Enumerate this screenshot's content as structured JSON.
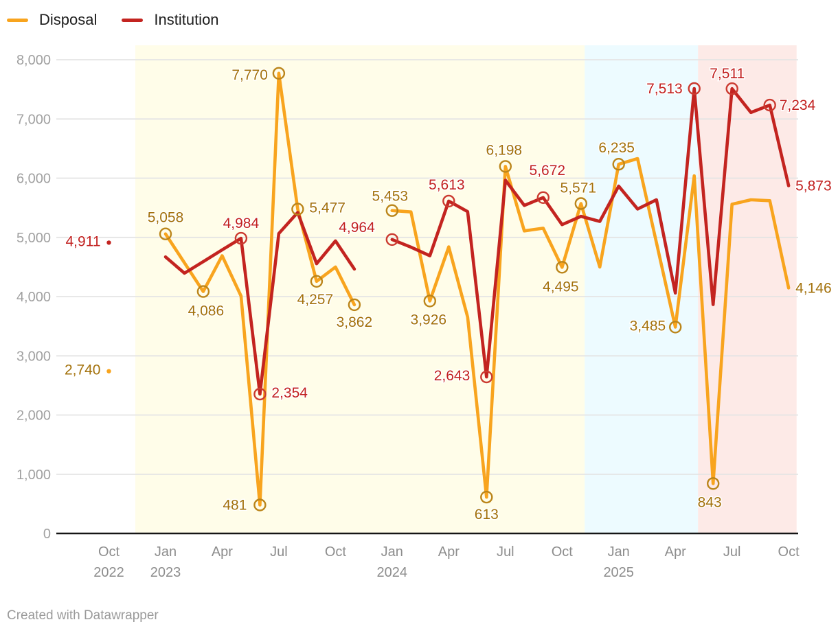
{
  "footer": "Created with Datawrapper",
  "legend": {
    "items": [
      {
        "label": "Disposal",
        "color": "#f8a41e"
      },
      {
        "label": "Institution",
        "color": "#c32420"
      }
    ]
  },
  "chart_data": {
    "type": "line",
    "title": "",
    "x_unit": "months since Oct 2022",
    "grid": true,
    "y_axis": {
      "range": [
        0,
        8250
      ],
      "ticks": [
        {
          "v": 0,
          "label": "0"
        },
        {
          "v": 1000,
          "label": "1,000"
        },
        {
          "v": 2000,
          "label": "2,000"
        },
        {
          "v": 3000,
          "label": "3,000"
        },
        {
          "v": 4000,
          "label": "4,000"
        },
        {
          "v": 5000,
          "label": "5,000"
        },
        {
          "v": 6000,
          "label": "6,000"
        },
        {
          "v": 7000,
          "label": "7,000"
        },
        {
          "v": 8000,
          "label": "8,000"
        }
      ]
    },
    "x_axis": {
      "ticks": [
        {
          "t": 0,
          "line1": "Oct",
          "line2": "2022"
        },
        {
          "t": 3,
          "line1": "Jan",
          "line2": "2023"
        },
        {
          "t": 6,
          "line1": "Apr"
        },
        {
          "t": 9,
          "line1": "Jul"
        },
        {
          "t": 12,
          "line1": "Oct"
        },
        {
          "t": 15,
          "line1": "Jan",
          "line2": "2024"
        },
        {
          "t": 18,
          "line1": "Apr"
        },
        {
          "t": 21,
          "line1": "Jul"
        },
        {
          "t": 24,
          "line1": "Oct"
        },
        {
          "t": 27,
          "line1": "Jan",
          "line2": "2025"
        },
        {
          "t": 30,
          "line1": "Apr"
        },
        {
          "t": 33,
          "line1": "Jul"
        },
        {
          "t": 36,
          "line1": "Oct"
        }
      ]
    },
    "bands": [
      {
        "name": "band-yellow",
        "color": "#fffde9",
        "from_t": 1.4,
        "to_t": 25.2
      },
      {
        "name": "band-blue",
        "color": "#edfbff",
        "from_t": 25.2,
        "to_t": 31.2
      },
      {
        "name": "band-pink",
        "color": "#fdeae7",
        "from_t": 31.2,
        "to_t": 36.42
      }
    ],
    "series": [
      {
        "name": "Disposal",
        "color": "#f8a41e",
        "label_color": "#a3710b",
        "marker_color": "#bb851a",
        "segments": [
          [
            {
              "t": 0,
              "v": 2740,
              "dot": true,
              "label": "2,740",
              "anchor": "end",
              "dx": -12,
              "dy": -2
            }
          ],
          [
            {
              "t": 3,
              "v": 5058,
              "marker": true,
              "label": "5,058",
              "anchor": "middle",
              "dx": 0,
              "dy": -24
            },
            {
              "t": 4,
              "v": 4570
            },
            {
              "t": 5,
              "v": 4086,
              "marker": true,
              "label": "4,086",
              "anchor": "middle",
              "dx": 4,
              "dy": 28
            },
            {
              "t": 6,
              "v": 4690
            },
            {
              "t": 7,
              "v": 4010
            },
            {
              "t": 8,
              "v": 481,
              "marker": true,
              "label": "481",
              "anchor": "end",
              "dx": -19,
              "dy": 0
            },
            {
              "t": 9,
              "v": 7770,
              "marker": true,
              "label": "7,770",
              "anchor": "end",
              "dx": -16,
              "dy": 2
            },
            {
              "t": 10,
              "v": 5477,
              "marker": true,
              "label": "5,477",
              "anchor": "start",
              "dx": 17,
              "dy": -2
            },
            {
              "t": 11,
              "v": 4257,
              "marker": true,
              "label": "4,257",
              "anchor": "middle",
              "dx": -2,
              "dy": 26
            },
            {
              "t": 12,
              "v": 4500
            },
            {
              "t": 13,
              "v": 3862,
              "marker": true,
              "label": "3,862",
              "anchor": "middle",
              "dx": 0,
              "dy": 25
            }
          ],
          [
            {
              "t": 15,
              "v": 5453,
              "marker": true,
              "label": "5,453",
              "anchor": "middle",
              "dx": -3,
              "dy": -21
            },
            {
              "t": 16,
              "v": 5430
            },
            {
              "t": 17,
              "v": 3926,
              "marker": true,
              "label": "3,926",
              "anchor": "middle",
              "dx": -2,
              "dy": 27
            },
            {
              "t": 18,
              "v": 4840
            },
            {
              "t": 19,
              "v": 3655
            },
            {
              "t": 20,
              "v": 613,
              "marker": true,
              "label": "613",
              "anchor": "middle",
              "dx": 0,
              "dy": 25
            },
            {
              "t": 21,
              "v": 6198,
              "marker": true,
              "label": "6,198",
              "anchor": "middle",
              "dx": -2,
              "dy": -24
            },
            {
              "t": 22,
              "v": 5110
            },
            {
              "t": 23,
              "v": 5155
            },
            {
              "t": 24,
              "v": 4495,
              "marker": true,
              "label": "4,495",
              "anchor": "middle",
              "dx": -2,
              "dy": 28
            },
            {
              "t": 25,
              "v": 5571,
              "marker": true,
              "label": "5,571",
              "anchor": "middle",
              "dx": -4,
              "dy": -23
            },
            {
              "t": 26,
              "v": 4500
            },
            {
              "t": 27,
              "v": 6235,
              "marker": true,
              "label": "6,235",
              "anchor": "middle",
              "dx": -3,
              "dy": -24
            },
            {
              "t": 28,
              "v": 6330
            },
            {
              "t": 29,
              "v": 4910
            },
            {
              "t": 30,
              "v": 3485,
              "marker": true,
              "label": "3,485",
              "anchor": "end",
              "dx": -14,
              "dy": -2
            },
            {
              "t": 31,
              "v": 6040
            },
            {
              "t": 32,
              "v": 843,
              "marker": true,
              "label": "843",
              "anchor": "middle",
              "dx": -5,
              "dy": 27
            },
            {
              "t": 33,
              "v": 5560
            },
            {
              "t": 34,
              "v": 5635
            },
            {
              "t": 35,
              "v": 5620
            },
            {
              "t": 36,
              "v": 4146,
              "label": "4,146",
              "anchor": "start",
              "dx": 10,
              "dy": 0
            }
          ]
        ]
      },
      {
        "name": "Institution",
        "color": "#c32420",
        "label_color": "#c22120",
        "marker_color": "#cb3a30",
        "segments": [
          [
            {
              "t": 0,
              "v": 4911,
              "dot": true,
              "label": "4,911",
              "anchor": "end",
              "dx": -12,
              "dy": -2
            }
          ],
          [
            {
              "t": 3,
              "v": 4670
            },
            {
              "t": 4,
              "v": 4395
            },
            {
              "t": 5,
              "v": 4590
            },
            {
              "t": 6,
              "v": 4790
            },
            {
              "t": 7,
              "v": 4984,
              "marker": true,
              "label": "4,984",
              "anchor": "middle",
              "dx": 0,
              "dy": -22
            },
            {
              "t": 8,
              "v": 2354,
              "marker": true,
              "label": "2,354",
              "anchor": "start",
              "dx": 17,
              "dy": -2
            },
            {
              "t": 9,
              "v": 5065
            },
            {
              "t": 10,
              "v": 5420
            },
            {
              "t": 11,
              "v": 4555
            },
            {
              "t": 12,
              "v": 4940
            },
            {
              "t": 13,
              "v": 4465
            }
          ],
          [
            {
              "t": 15,
              "v": 4964,
              "marker": true,
              "label": "4,964",
              "anchor": "end",
              "dx": -25,
              "dy": -18
            },
            {
              "t": 16,
              "v": 4835
            },
            {
              "t": 17,
              "v": 4690
            },
            {
              "t": 18,
              "v": 5613,
              "marker": true,
              "label": "5,613",
              "anchor": "middle",
              "dx": -3,
              "dy": -24
            },
            {
              "t": 19,
              "v": 5435
            },
            {
              "t": 20,
              "v": 2643,
              "marker": true,
              "label": "2,643",
              "anchor": "end",
              "dx": -24,
              "dy": -2
            },
            {
              "t": 21,
              "v": 5965
            },
            {
              "t": 22,
              "v": 5540
            },
            {
              "t": 23,
              "v": 5672,
              "marker": true,
              "label": "5,672",
              "anchor": "middle",
              "dx": 6,
              "dy": -40
            },
            {
              "t": 24,
              "v": 5215
            },
            {
              "t": 25,
              "v": 5355
            },
            {
              "t": 26,
              "v": 5270
            },
            {
              "t": 27,
              "v": 5865
            },
            {
              "t": 28,
              "v": 5480
            },
            {
              "t": 29,
              "v": 5635
            },
            {
              "t": 30,
              "v": 4060
            },
            {
              "t": 31,
              "v": 7513,
              "marker": true,
              "label": "7,513",
              "anchor": "end",
              "dx": -17,
              "dy": 0
            },
            {
              "t": 32,
              "v": 3865
            },
            {
              "t": 33,
              "v": 7511,
              "marker": true,
              "label": "7,511",
              "anchor": "middle",
              "dx": -7,
              "dy": -22
            },
            {
              "t": 34,
              "v": 7110
            },
            {
              "t": 35,
              "v": 7234,
              "marker": true,
              "label": "7,234",
              "anchor": "start",
              "dx": 14,
              "dy": 0
            },
            {
              "t": 36,
              "v": 5873,
              "label": "5,873",
              "anchor": "start",
              "dx": 10,
              "dy": 0
            }
          ]
        ]
      }
    ]
  }
}
